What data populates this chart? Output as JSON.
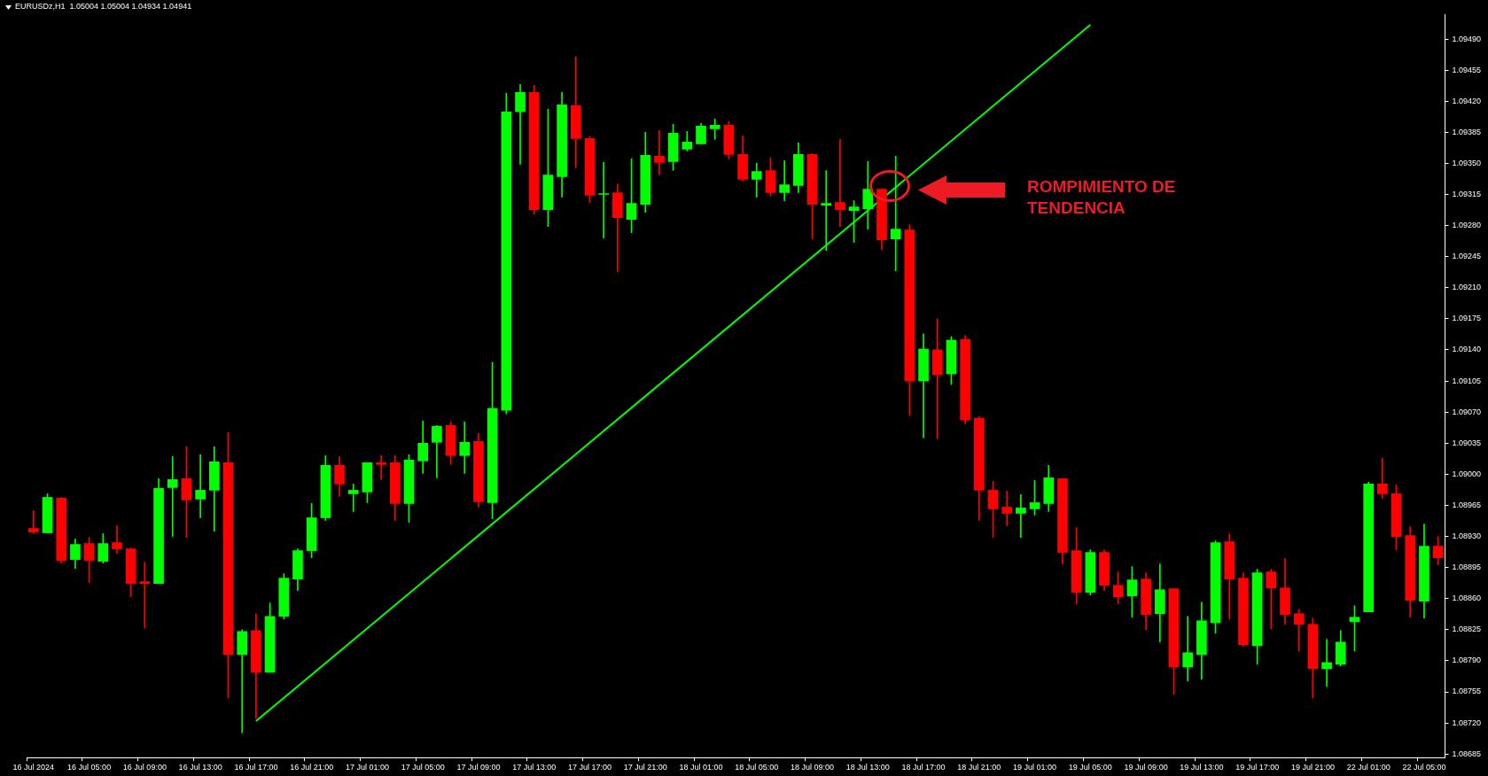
{
  "chart_data": {
    "type": "candlestick",
    "title": "EURUSDz,H1  1.05004 1.05004 1.04934 1.04941",
    "categories": [
      "16 Jul 2024",
      null,
      null,
      null,
      "16 Jul 05:00",
      null,
      null,
      null,
      "16 Jul 09:00",
      null,
      null,
      null,
      "16 Jul 13:00",
      null,
      null,
      null,
      "16 Jul 17:00",
      null,
      null,
      null,
      "16 Jul 21:00",
      null,
      null,
      null,
      "17 Jul 01:00",
      null,
      null,
      null,
      "17 Jul 05:00",
      null,
      null,
      null,
      "17 Jul 09:00",
      null,
      null,
      null,
      "17 Jul 13:00",
      null,
      null,
      null,
      "17 Jul 17:00",
      null,
      null,
      null,
      "17 Jul 21:00",
      null,
      null,
      null,
      "18 Jul 01:00",
      null,
      null,
      null,
      "18 Jul 05:00",
      null,
      null,
      null,
      "18 Jul 09:00",
      null,
      null,
      null,
      "18 Jul 13:00",
      null,
      null,
      null,
      "18 Jul 17:00",
      null,
      null,
      null,
      "18 Jul 21:00",
      null,
      null,
      null,
      "19 Jul 01:00",
      null,
      null,
      null,
      "19 Jul 05:00",
      null,
      null,
      null,
      "19 Jul 09:00",
      null,
      null,
      null,
      "19 Jul 13:00",
      null,
      null,
      null,
      "19 Jul 17:00",
      null,
      null,
      null,
      "19 Jul 21:00",
      null,
      null,
      null,
      "22 Jul 01:00",
      null,
      null,
      null,
      "22 Jul 05:00",
      null
    ],
    "ohlc": [
      [
        1.08939,
        1.08959,
        1.08933,
        1.08935
      ],
      [
        1.08934,
        1.08978,
        1.08934,
        1.08974
      ],
      [
        1.08973,
        1.08974,
        1.089,
        1.08903
      ],
      [
        1.08904,
        1.08927,
        1.08894,
        1.08921
      ],
      [
        1.08922,
        1.08929,
        1.08878,
        1.08903
      ],
      [
        1.08902,
        1.08933,
        1.089,
        1.08922
      ],
      [
        1.08923,
        1.08942,
        1.08911,
        1.08916
      ],
      [
        1.08916,
        1.08917,
        1.08862,
        1.08877
      ],
      [
        1.08879,
        1.08901,
        1.08827,
        1.08877
      ],
      [
        1.08877,
        1.08995,
        1.08877,
        1.08984
      ],
      [
        1.08985,
        1.0902,
        1.0893,
        1.08994
      ],
      [
        1.08995,
        1.09031,
        1.08929,
        1.08971
      ],
      [
        1.08972,
        1.09022,
        1.08951,
        1.08982
      ],
      [
        1.08982,
        1.09031,
        1.08936,
        1.09014
      ],
      [
        1.09013,
        1.09047,
        1.08748,
        1.08797
      ],
      [
        1.08797,
        1.08825,
        1.08709,
        1.08823
      ],
      [
        1.08824,
        1.08843,
        1.08725,
        1.08777
      ],
      [
        1.08777,
        1.08855,
        1.08777,
        1.0884
      ],
      [
        1.0884,
        1.08888,
        1.08837,
        1.08883
      ],
      [
        1.08882,
        1.08916,
        1.08869,
        1.08914
      ],
      [
        1.08914,
        1.08967,
        1.08906,
        1.08951
      ],
      [
        1.08951,
        1.09021,
        1.08948,
        1.0901
      ],
      [
        1.0901,
        1.0902,
        1.08975,
        1.08989
      ],
      [
        1.08978,
        1.08989,
        1.08958,
        1.08982
      ],
      [
        1.0898,
        1.09013,
        1.08968,
        1.09013
      ],
      [
        1.09013,
        1.09021,
        1.08994,
        1.09011
      ],
      [
        1.09013,
        1.09021,
        1.08948,
        1.08967
      ],
      [
        1.08967,
        1.09022,
        1.08946,
        1.09016
      ],
      [
        1.09015,
        1.0906,
        1.09001,
        1.09035
      ],
      [
        1.09036,
        1.09055,
        1.08996,
        1.09054
      ],
      [
        1.09055,
        1.09059,
        1.09011,
        1.09021
      ],
      [
        1.09021,
        1.09059,
        1.09001,
        1.09036
      ],
      [
        1.09037,
        1.09046,
        1.08963,
        1.08969
      ],
      [
        1.08968,
        1.09126,
        1.0895,
        1.09074
      ],
      [
        1.09072,
        1.09429,
        1.09068,
        1.09408
      ],
      [
        1.09408,
        1.09439,
        1.09349,
        1.0943
      ],
      [
        1.0943,
        1.09438,
        1.09293,
        1.09298
      ],
      [
        1.09298,
        1.09411,
        1.09279,
        1.09337
      ],
      [
        1.09335,
        1.0943,
        1.09312,
        1.09416
      ],
      [
        1.09415,
        1.0947,
        1.09345,
        1.09378
      ],
      [
        1.09378,
        1.0938,
        1.09306,
        1.09314
      ],
      [
        1.09315,
        1.09351,
        1.09266,
        1.09316
      ],
      [
        1.09317,
        1.09327,
        1.09228,
        1.09289
      ],
      [
        1.09287,
        1.09355,
        1.09272,
        1.09305
      ],
      [
        1.09304,
        1.09385,
        1.09295,
        1.09359
      ],
      [
        1.09358,
        1.09387,
        1.09337,
        1.09351
      ],
      [
        1.09352,
        1.09394,
        1.09342,
        1.09384
      ],
      [
        1.09366,
        1.09386,
        1.09364,
        1.09374
      ],
      [
        1.09372,
        1.09395,
        1.09372,
        1.09392
      ],
      [
        1.09389,
        1.094,
        1.09377,
        1.09393
      ],
      [
        1.09393,
        1.09397,
        1.09355,
        1.0936
      ],
      [
        1.0936,
        1.09381,
        1.0933,
        1.09332
      ],
      [
        1.09332,
        1.0935,
        1.09312,
        1.09341
      ],
      [
        1.09342,
        1.09356,
        1.09313,
        1.09317
      ],
      [
        1.09317,
        1.09353,
        1.09308,
        1.09326
      ],
      [
        1.09325,
        1.09373,
        1.09317,
        1.0936
      ],
      [
        1.0936,
        1.09361,
        1.09265,
        1.09304
      ],
      [
        1.09303,
        1.09342,
        1.09252,
        1.09305
      ],
      [
        1.09306,
        1.09377,
        1.09279,
        1.09298
      ],
      [
        1.09297,
        1.09308,
        1.09261,
        1.09301
      ],
      [
        1.09299,
        1.09352,
        1.09276,
        1.09321
      ],
      [
        1.09321,
        1.09321,
        1.09253,
        1.09264
      ],
      [
        1.09265,
        1.09358,
        1.09229,
        1.09276
      ],
      [
        1.09275,
        1.09281,
        1.09066,
        1.09105
      ],
      [
        1.09105,
        1.09158,
        1.09041,
        1.09141
      ],
      [
        1.0914,
        1.09175,
        1.0904,
        1.09112
      ],
      [
        1.09113,
        1.09155,
        1.09101,
        1.09151
      ],
      [
        1.09152,
        1.09156,
        1.09057,
        1.09061
      ],
      [
        1.09063,
        1.09065,
        1.08948,
        1.08982
      ],
      [
        1.08982,
        1.08992,
        1.08929,
        1.08961
      ],
      [
        1.08963,
        1.08981,
        1.08942,
        1.08956
      ],
      [
        1.08956,
        1.08977,
        1.08929,
        1.08962
      ],
      [
        1.08961,
        1.08993,
        1.08954,
        1.08968
      ],
      [
        1.08967,
        1.0901,
        1.08958,
        1.08996
      ],
      [
        1.08995,
        1.08995,
        1.08899,
        1.08912
      ],
      [
        1.08914,
        1.0894,
        1.08854,
        1.08867
      ],
      [
        1.08867,
        1.08915,
        1.08864,
        1.08912
      ],
      [
        1.08912,
        1.08915,
        1.08869,
        1.08875
      ],
      [
        1.08875,
        1.0889,
        1.08854,
        1.08862
      ],
      [
        1.08863,
        1.08896,
        1.08839,
        1.08881
      ],
      [
        1.08882,
        1.08889,
        1.08825,
        1.08842
      ],
      [
        1.08843,
        1.08899,
        1.08811,
        1.0887
      ],
      [
        1.08871,
        1.08871,
        1.08752,
        1.08783
      ],
      [
        1.08783,
        1.0884,
        1.08767,
        1.08799
      ],
      [
        1.08797,
        1.08856,
        1.08769,
        1.08835
      ],
      [
        1.08833,
        1.08925,
        1.08821,
        1.08923
      ],
      [
        1.08924,
        1.08933,
        1.08837,
        1.08882
      ],
      [
        1.08883,
        1.08889,
        1.08806,
        1.08808
      ],
      [
        1.08807,
        1.08893,
        1.08786,
        1.08889
      ],
      [
        1.0889,
        1.08893,
        1.08826,
        1.08872
      ],
      [
        1.08872,
        1.08905,
        1.08831,
        1.08842
      ],
      [
        1.08843,
        1.08848,
        1.08801,
        1.08831
      ],
      [
        1.08831,
        1.08838,
        1.08748,
        1.08781
      ],
      [
        1.08781,
        1.08814,
        1.08761,
        1.08788
      ],
      [
        1.08786,
        1.08824,
        1.08784,
        1.08811
      ],
      [
        1.08834,
        1.08852,
        1.08801,
        1.08839
      ],
      [
        1.08845,
        1.08991,
        1.08845,
        1.08989
      ],
      [
        1.08989,
        1.09018,
        1.08973,
        1.08978
      ],
      [
        1.08978,
        1.08988,
        1.08915,
        1.0893
      ],
      [
        1.08931,
        1.08941,
        1.08839,
        1.08858
      ],
      [
        1.08857,
        1.08944,
        1.08838,
        1.08919
      ],
      [
        1.08919,
        1.0893,
        1.08898,
        1.08906
      ]
    ],
    "colors": [
      "#ff0000",
      "#00ff00",
      "#ff0000",
      "#00ff00",
      "#ff0000",
      "#00ff00",
      "#ff0000",
      "#ff0000",
      "#ff0000",
      "#00ff00",
      "#00ff00",
      "#ff0000",
      "#00ff00",
      "#00ff00",
      "#ff0000",
      "#00ff00",
      "#ff0000",
      "#00ff00",
      "#00ff00",
      "#00ff00",
      "#00ff00",
      "#00ff00",
      "#ff0000",
      "#00ff00",
      "#00ff00",
      "#ff0000",
      "#ff0000",
      "#00ff00",
      "#00ff00",
      "#00ff00",
      "#ff0000",
      "#00ff00",
      "#ff0000",
      "#00ff00",
      "#00ff00",
      "#00ff00",
      "#ff0000",
      "#00ff00",
      "#00ff00",
      "#ff0000",
      "#ff0000",
      "#00ff00",
      "#ff0000",
      "#00ff00",
      "#00ff00",
      "#ff0000",
      "#00ff00",
      "#00ff00",
      "#00ff00",
      "#00ff00",
      "#ff0000",
      "#ff0000",
      "#00ff00",
      "#ff0000",
      "#00ff00",
      "#00ff00",
      "#ff0000",
      "#00ff00",
      "#ff0000",
      "#00ff00",
      "#00ff00",
      "#ff0000",
      "#00ff00",
      "#ff0000",
      "#00ff00",
      "#ff0000",
      "#00ff00",
      "#ff0000",
      "#ff0000",
      "#ff0000",
      "#ff0000",
      "#00ff00",
      "#00ff00",
      "#00ff00",
      "#ff0000",
      "#ff0000",
      "#00ff00",
      "#ff0000",
      "#ff0000",
      "#00ff00",
      "#ff0000",
      "#00ff00",
      "#ff0000",
      "#00ff00",
      "#00ff00",
      "#00ff00",
      "#ff0000",
      "#ff0000",
      "#00ff00",
      "#ff0000",
      "#ff0000",
      "#ff0000",
      "#ff0000",
      "#00ff00",
      "#00ff00",
      "#00ff00",
      "#00ff00",
      "#ff0000",
      "#ff0000",
      "#ff0000",
      "#00ff00",
      "#ff0000"
    ],
    "series": [
      {
        "type": "line",
        "color": "#00ff00",
        "x": [
          "16 Jul 17:00",
          "19 Jul 05:00"
        ],
        "values": [
          1.08722,
          1.09506
        ]
      }
    ],
    "ylim": [
      1.08681,
      1.09518
    ],
    "yticks": [
      {
        "value": 1.08685,
        "label": "1.08685"
      },
      {
        "value": 1.0872,
        "label": "1.08720"
      },
      {
        "value": 1.08755,
        "label": "1.08755"
      },
      {
        "value": 1.0879,
        "label": "1.08790"
      },
      {
        "value": 1.08825,
        "label": "1.08825"
      },
      {
        "value": 1.0886,
        "label": "1.08860"
      },
      {
        "value": 1.08895,
        "label": "1.08895"
      },
      {
        "value": 1.0893,
        "label": "1.08930"
      },
      {
        "value": 1.08965,
        "label": "1.08965"
      },
      {
        "value": 1.09,
        "label": "1.09000"
      },
      {
        "value": 1.09035,
        "label": "1.09035"
      },
      {
        "value": 1.0907,
        "label": "1.09070"
      },
      {
        "value": 1.09105,
        "label": "1.09105"
      },
      {
        "value": 1.0914,
        "label": "1.09140"
      },
      {
        "value": 1.09175,
        "label": "1.09175"
      },
      {
        "value": 1.0921,
        "label": "1.09210"
      },
      {
        "value": 1.09245,
        "label": "1.09245"
      },
      {
        "value": 1.0928,
        "label": "1.09280"
      },
      {
        "value": 1.09315,
        "label": "1.09315"
      },
      {
        "value": 1.0935,
        "label": "1.09350"
      },
      {
        "value": 1.09385,
        "label": "1.09385"
      },
      {
        "value": 1.0942,
        "label": "1.09420"
      },
      {
        "value": 1.09455,
        "label": "1.09455"
      },
      {
        "value": 1.0949,
        "label": "1.09490"
      }
    ],
    "annotations": [
      "ROMPIMIENTO DE TENDENCIA"
    ]
  }
}
